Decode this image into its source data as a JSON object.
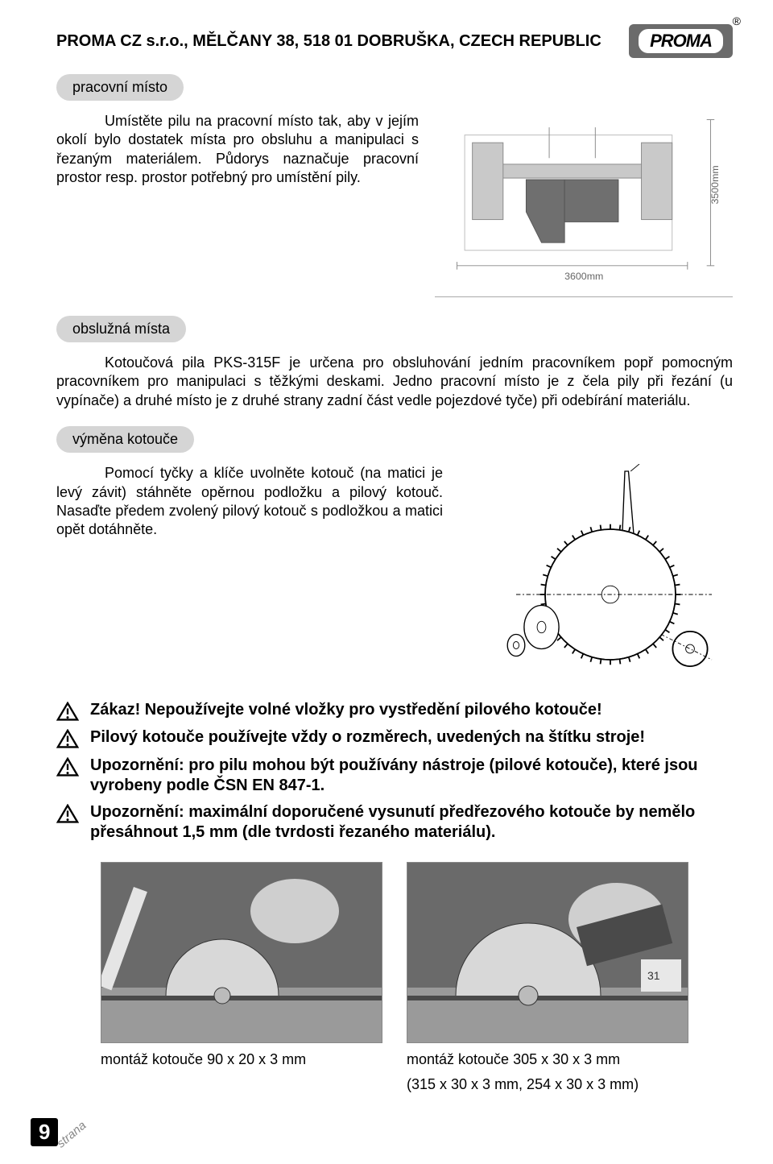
{
  "header": {
    "company": "PROMA CZ s.r.o., MĚLČANY 38, 518 01 DOBRUŠKA, CZECH REPUBLIC",
    "logo_text": "PROMA",
    "registered": "®"
  },
  "section1": {
    "label": "pracovní místo",
    "text": "Umístěte pilu na pracovní místo tak, aby v jejím okolí bylo dostatek místa pro obsluhu a manipulaci s řezaným materiálem. Půdorys naznačuje pracovní prostor resp. prostor potřebný pro umístění pily."
  },
  "floorplan": {
    "width_label": "3600mm",
    "height_label": "3500mm",
    "bg": "#ffffff",
    "line_color": "#888888",
    "fill_a": "#c9c9c9",
    "fill_b": "#6f6f6f"
  },
  "section2": {
    "label": "obslužná místa",
    "text": "Kotoučová pila PKS-315F je určena pro obsluhování jedním pracovníkem popř pomocným pracovníkem pro manipulaci s těžkými deskami.  Jedno pracovní místo je z čela pily při řezání (u vypínače) a druhé místo je z druhé strany zadní část vedle pojezdové tyče) při odebírání materiálu."
  },
  "section3": {
    "label": "výměna kotouče",
    "text": "Pomocí tyčky a klíče uvolněte kotouč (na matici je levý závit) stáhněte opěrnou podložku a pilový kotouč. Nasaďte předem zvolený pilový kotouč s podložkou a matici opět dotáhněte."
  },
  "warnings": [
    "Zákaz! Nepoužívejte volné vložky pro vystředění pilového kotouče!",
    "Pilový kotouče používejte vždy o rozměrech, uvedených na štítku stroje!",
    "Upozornění: pro pilu mohou být používány nástroje (pilové kotouče), které jsou vyrobeny podle ČSN EN 847-1.",
    "Upozornění: maximální doporučené vysunutí předřezového kotouče by nemělo přesáhnout 1,5 mm (dle tvrdosti řezaného materiálu)."
  ],
  "photos": {
    "caption_left": "montáž kotouče 90 x 20 x 3 mm",
    "caption_right_1": "montáž kotouče 305 x 30 x 3 mm",
    "caption_right_2": "(315 x 30 x 3 mm, 254 x 30 x 3 mm)"
  },
  "page": {
    "number": "9",
    "label": "strana"
  },
  "colors": {
    "label_bg": "#d5d5d5",
    "text": "#000000",
    "logo_bg": "#6b6b6b"
  }
}
